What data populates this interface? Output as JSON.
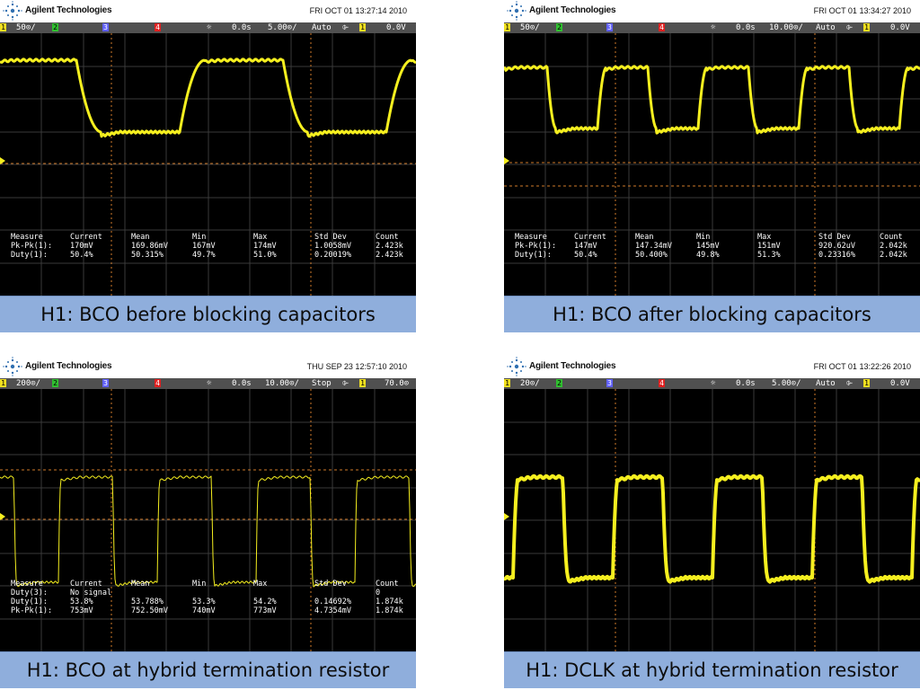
{
  "panels": [
    {
      "id": "p1",
      "brand": "Agilent Technologies",
      "datetime": "FRI OCT 01 13:27:14 2010",
      "status": {
        "ch1_scale": "50⊙/",
        "ch1": "1",
        "ch2": "2",
        "ch3": "3",
        "ch4": "4",
        "delay": "0.0s",
        "timebase": "5.00⊙/",
        "mode": "Auto",
        "trig_slope": "⌱",
        "trig_ch": "1",
        "trig_level": "0.0V"
      },
      "measurements": {
        "headers": [
          "Measure",
          "Current",
          "Mean",
          "Min",
          "Max",
          "Std Dev",
          "Count"
        ],
        "rows": [
          [
            "Pk-Pk(1):",
            "170mV",
            "169.86mV",
            "167mV",
            "174mV",
            "1.0058mV",
            "2.423k"
          ],
          [
            "Duty(1):",
            "50.4%",
            "50.315%",
            "49.7%",
            "51.0%",
            "0.20019%",
            "2.423k"
          ]
        ]
      },
      "caption": "H1: BCO before blocking capacitors"
    },
    {
      "id": "p2",
      "brand": "Agilent Technologies",
      "datetime": "FRI OCT 01 13:34:27 2010",
      "status": {
        "ch1_scale": "50⊙/",
        "ch1": "1",
        "ch2": "2",
        "ch3": "3",
        "ch4": "4",
        "delay": "0.0s",
        "timebase": "10.00⊙/",
        "mode": "Auto",
        "trig_slope": "⌱",
        "trig_ch": "1",
        "trig_level": "0.0V"
      },
      "measurements": {
        "headers": [
          "Measure",
          "Current",
          "Mean",
          "Min",
          "Max",
          "Std Dev",
          "Count"
        ],
        "rows": [
          [
            "Pk-Pk(1):",
            "147mV",
            "147.34mV",
            "145mV",
            "151mV",
            "920.62uV",
            "2.042k"
          ],
          [
            "Duty(1):",
            "50.4%",
            "50.400%",
            "49.8%",
            "51.3%",
            "0.23316%",
            "2.042k"
          ]
        ]
      },
      "caption": "H1: BCO after blocking capacitors"
    },
    {
      "id": "p3",
      "brand": "Agilent Technologies",
      "datetime": "THU SEP 23 12:57:10 2010",
      "status": {
        "ch1_scale": "200⊙/",
        "ch1": "1",
        "ch2": "2",
        "ch3": "3",
        "ch4": "4",
        "delay": "0.0s",
        "timebase": "10.00⊙/",
        "mode": "Stop",
        "trig_slope": "⌱",
        "trig_ch": "1",
        "trig_level": "70.0⊙"
      },
      "measurements": {
        "headers": [
          "Measure",
          "Current",
          "Mean",
          "Min",
          "Max",
          "Std Dev",
          "Count"
        ],
        "rows": [
          [
            "Duty(3):",
            "No signal",
            "",
            "",
            "",
            "",
            "0"
          ],
          [
            "Duty(1):",
            "53.8%",
            "53.788%",
            "53.3%",
            "54.2%",
            "0.14692%",
            "1.874k"
          ],
          [
            "Pk-Pk(1):",
            "753mV",
            "752.50mV",
            "740mV",
            "773mV",
            "4.7354mV",
            "1.874k"
          ]
        ]
      },
      "caption": "H1: BCO at hybrid termination resistor"
    },
    {
      "id": "p4",
      "brand": "Agilent Technologies",
      "datetime": "FRI OCT 01 13:22:26 2010",
      "status": {
        "ch1_scale": "20⊙/",
        "ch1": "1",
        "ch2": "2",
        "ch3": "3",
        "ch4": "4",
        "delay": "0.0s",
        "timebase": "5.00⊙/",
        "mode": "Auto",
        "trig_slope": "⌱",
        "trig_ch": "1",
        "trig_level": "0.0V"
      },
      "measurements": null,
      "caption": "H1: DCLK at hybrid termination resistor"
    }
  ],
  "colors": {
    "trace": "#f5ef1f",
    "grid": "#3a3a3a",
    "screen": "#000000",
    "caption_bg": "#8faedc",
    "marker": "#d07a2a"
  }
}
